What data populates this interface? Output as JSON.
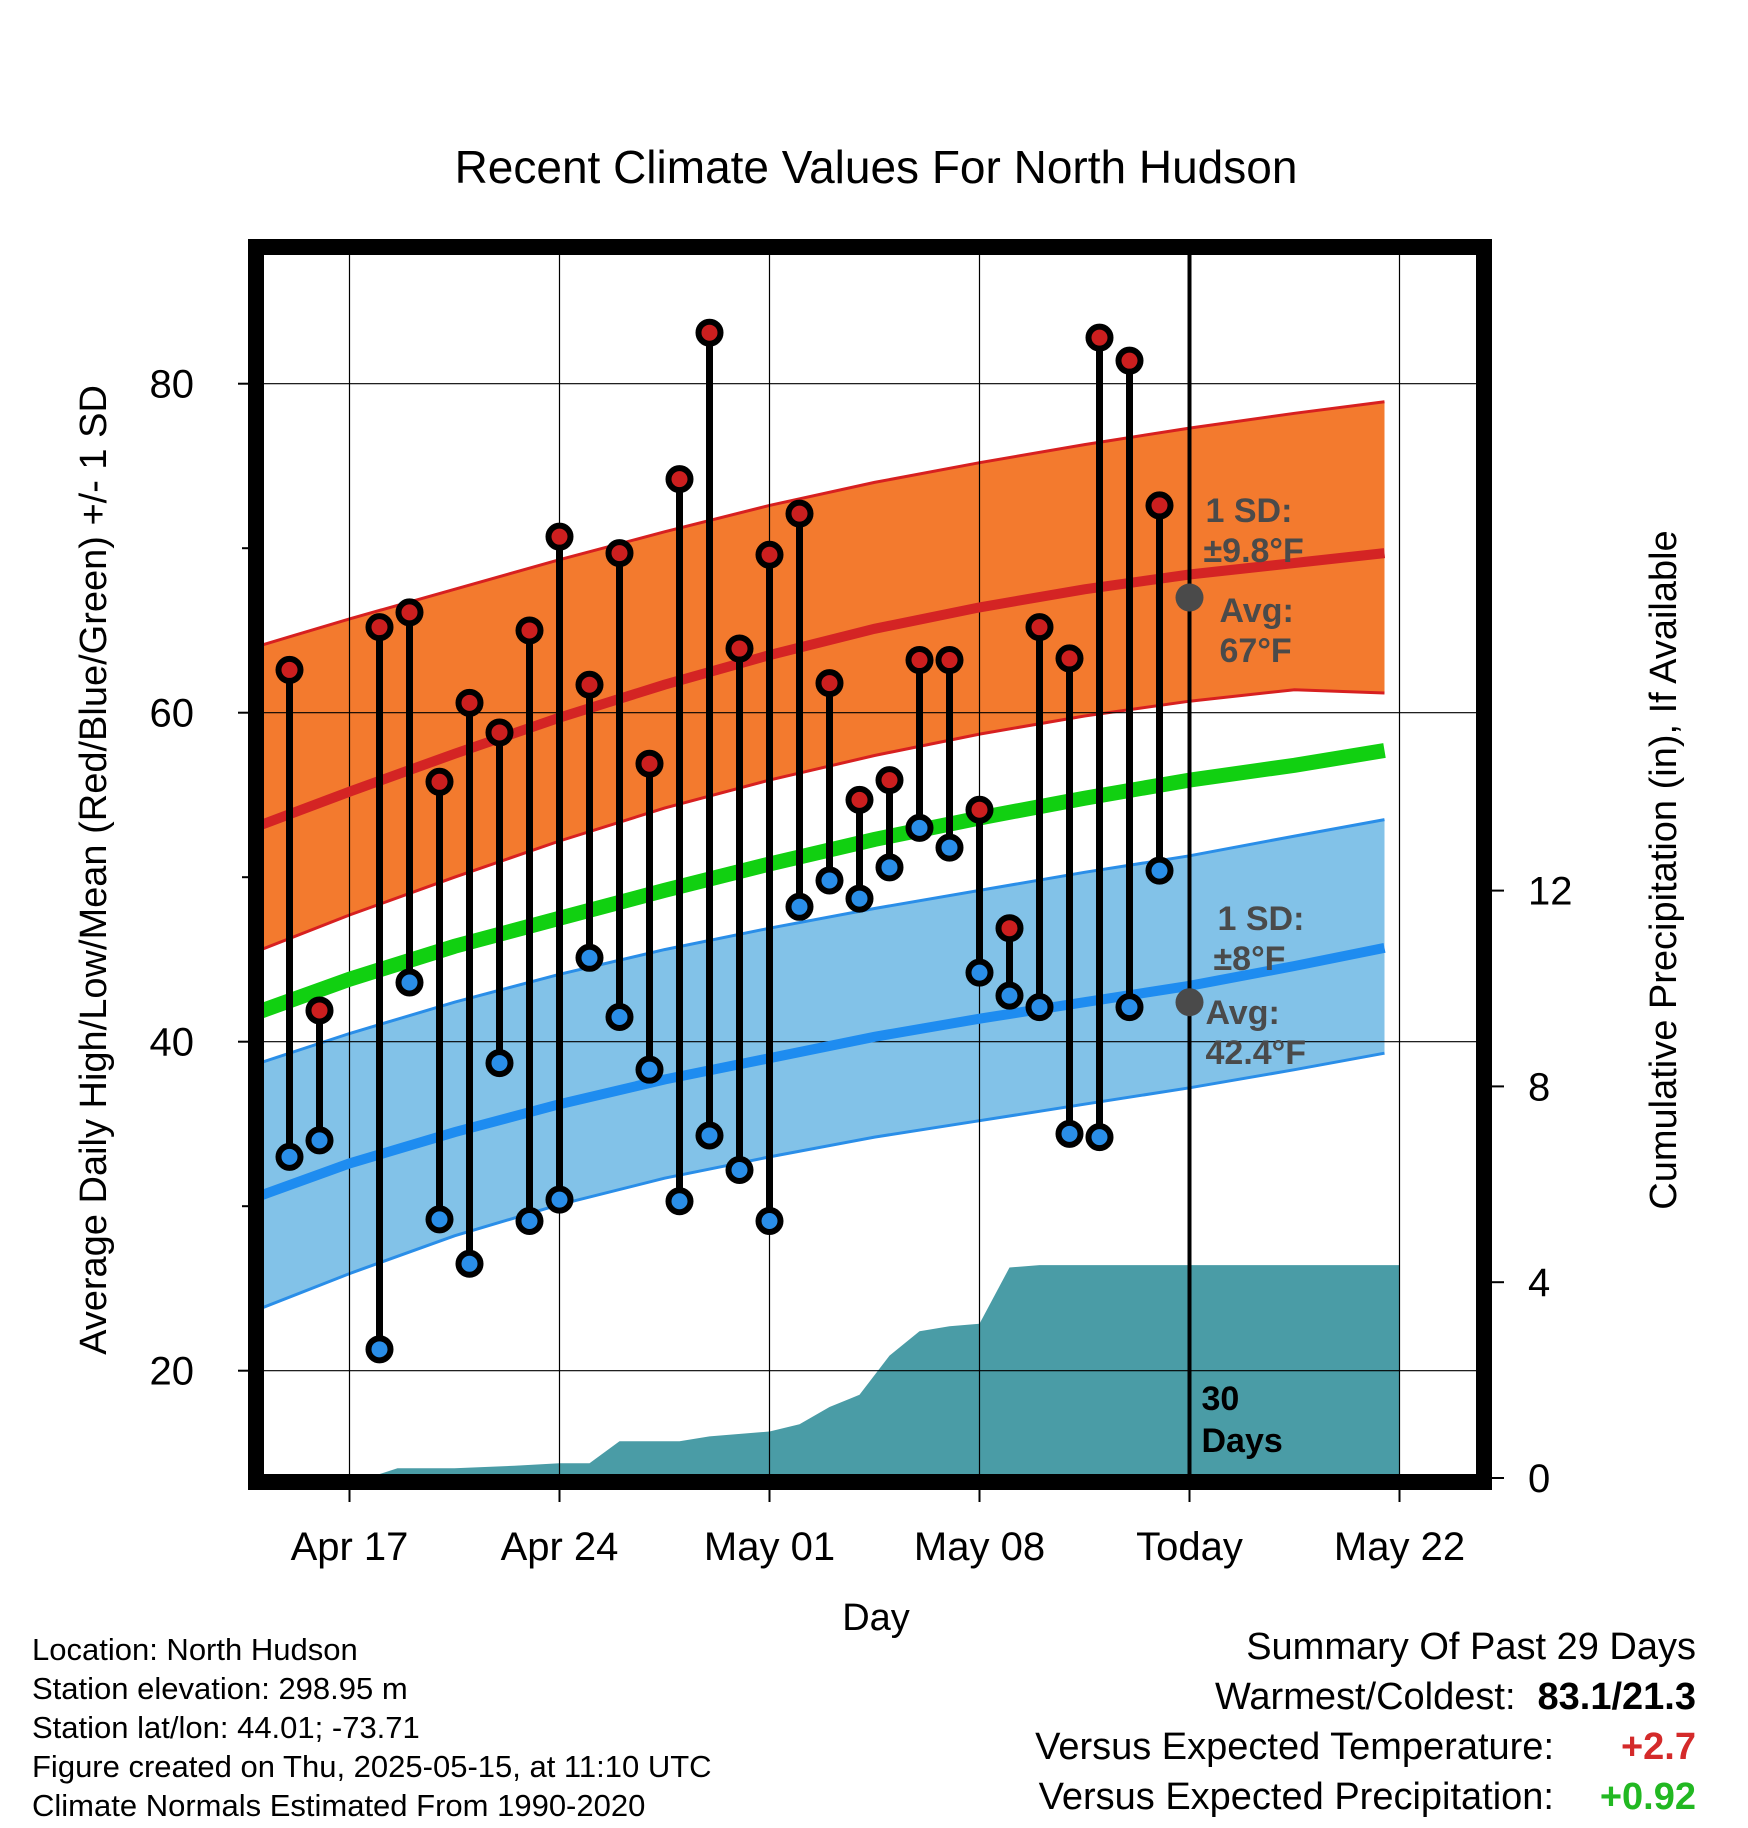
{
  "chart_data": {
    "type": "line",
    "title": "Recent Climate Values For North Hudson",
    "xlabel": "Day",
    "ylabel": "Average Daily High/Low/Mean (Red/Blue/Green) +/- 1 SD",
    "y2label": "Cumulative Precipitation (in), If Available",
    "x_domain": [
      -3.8,
      34.6
    ],
    "x_ticks": [
      {
        "day": 0,
        "label": "Apr 17"
      },
      {
        "day": 7,
        "label": "Apr 24"
      },
      {
        "day": 14,
        "label": "May 01"
      },
      {
        "day": 21,
        "label": "May 08"
      },
      {
        "day": 28,
        "label": "Today"
      },
      {
        "day": 35,
        "label": "May 22"
      }
    ],
    "ylim": [
      13.8,
      88.5
    ],
    "y_ticks": [
      20,
      40,
      60,
      80
    ],
    "y2lim": [
      0,
      20
    ],
    "y2_ticks": [
      0,
      4,
      8,
      12
    ],
    "grid": true,
    "today_x": 28,
    "today_label_line1": "30",
    "today_label_line2": "Days",
    "colors": {
      "high_band": "#f37a2e",
      "high_edge": "#d72020",
      "high_mean": "#d42424",
      "low_band": "#82c2e8",
      "low_edge": "#2a8ee8",
      "low_mean": "#1e8cf0",
      "mean_line": "#11d011",
      "precip": "#4a9ca6",
      "high_dot": "#cc1f1f",
      "low_dot": "#2a8ee8",
      "avg_dot": "#4a4a4a",
      "warm": "#d42a2a",
      "wet": "#22b822"
    },
    "normals": {
      "x": [
        -3.5,
        0,
        3.5,
        7,
        10.5,
        14,
        17.5,
        21,
        24.5,
        28,
        31.5,
        34.5
      ],
      "high_mean": [
        52.8,
        55.2,
        57.5,
        59.7,
        61.7,
        63.5,
        65.1,
        66.4,
        67.5,
        68.4,
        69.1,
        69.7
      ],
      "high_upper": [
        63.8,
        65.7,
        67.5,
        69.3,
        71.0,
        72.6,
        74.0,
        75.2,
        76.3,
        77.3,
        78.2,
        78.9
      ],
      "high_lower": [
        45.2,
        47.7,
        50.0,
        52.2,
        54.2,
        55.9,
        57.4,
        58.7,
        59.8,
        60.7,
        61.4,
        61.2
      ],
      "mean": [
        41.5,
        43.8,
        45.8,
        47.5,
        49.2,
        50.8,
        52.3,
        53.6,
        54.8,
        55.9,
        56.8,
        57.7
      ],
      "low_mean": [
        30.3,
        32.6,
        34.5,
        36.2,
        37.7,
        39.0,
        40.3,
        41.4,
        42.4,
        43.4,
        44.6,
        45.7
      ],
      "low_upper": [
        38.4,
        40.5,
        42.4,
        44.1,
        45.6,
        46.9,
        48.1,
        49.2,
        50.3,
        51.3,
        52.5,
        53.5
      ],
      "low_lower": [
        23.4,
        25.9,
        28.2,
        30.1,
        31.7,
        33.0,
        34.2,
        35.2,
        36.2,
        37.2,
        38.3,
        39.3
      ]
    },
    "daily": {
      "x": [
        -2,
        -1,
        1,
        2,
        3,
        4,
        5,
        6,
        7,
        8,
        9,
        10,
        11,
        12,
        13,
        14,
        15,
        16,
        17,
        18,
        19,
        20,
        21,
        22,
        23,
        24,
        25,
        26,
        27
      ],
      "high": [
        62.6,
        41.9,
        65.2,
        66.1,
        55.8,
        60.6,
        58.8,
        65.0,
        70.7,
        61.7,
        69.7,
        56.9,
        74.2,
        83.1,
        63.9,
        69.6,
        72.1,
        61.8,
        54.7,
        55.9,
        63.2,
        63.2,
        54.1,
        46.9,
        65.2,
        63.3,
        82.8,
        81.4,
        72.6
      ],
      "low": [
        33.0,
        34.0,
        21.3,
        43.6,
        29.2,
        26.5,
        38.7,
        29.1,
        30.4,
        45.1,
        41.5,
        38.3,
        30.3,
        34.3,
        32.2,
        29.1,
        48.2,
        49.8,
        48.7,
        50.6,
        53.0,
        51.8,
        44.2,
        42.8,
        42.1,
        34.4,
        34.2,
        42.1,
        50.4
      ]
    },
    "precip_cum": {
      "x": [
        -3.5,
        0.6,
        1.6,
        3.5,
        5.5,
        7,
        8,
        9,
        11,
        12,
        14,
        15,
        16,
        17,
        18,
        19,
        20,
        21,
        22,
        23,
        35
      ],
      "y": [
        0,
        0,
        0.2,
        0.2,
        0.25,
        0.3,
        0.3,
        0.75,
        0.75,
        0.85,
        0.95,
        1.1,
        1.45,
        1.7,
        2.5,
        3.0,
        3.1,
        3.15,
        4.3,
        4.35,
        4.35
      ]
    },
    "annotations": {
      "high_sd_line1": "1 SD:",
      "high_sd_line2": "±9.8°F",
      "high_avg_line1": "Avg:",
      "high_avg_line2": "67°F",
      "high_avg_value": 67,
      "low_sd_line1": "1 SD:",
      "low_sd_line2": "±8°F",
      "low_avg_line1": "Avg:",
      "low_avg_line2": "42.4°F",
      "low_avg_value": 42.4
    }
  },
  "info": {
    "location": "Location: North Hudson",
    "elevation": "Station elevation: 298.95 m",
    "latlon": "Station lat/lon: 44.01; -73.71",
    "created": "Figure created on Thu, 2025-05-15, at 11:10 UTC",
    "normals": "Climate Normals Estimated From 1990-2020"
  },
  "summary": {
    "title": "Summary Of Past 29 Days",
    "warmest_label": "Warmest/Coldest:",
    "warmest_value": "83.1/21.3",
    "temp_label": "Versus Expected Temperature:",
    "temp_value": "+2.7",
    "precip_label": "Versus Expected Precipitation:",
    "precip_value": "+0.92"
  }
}
